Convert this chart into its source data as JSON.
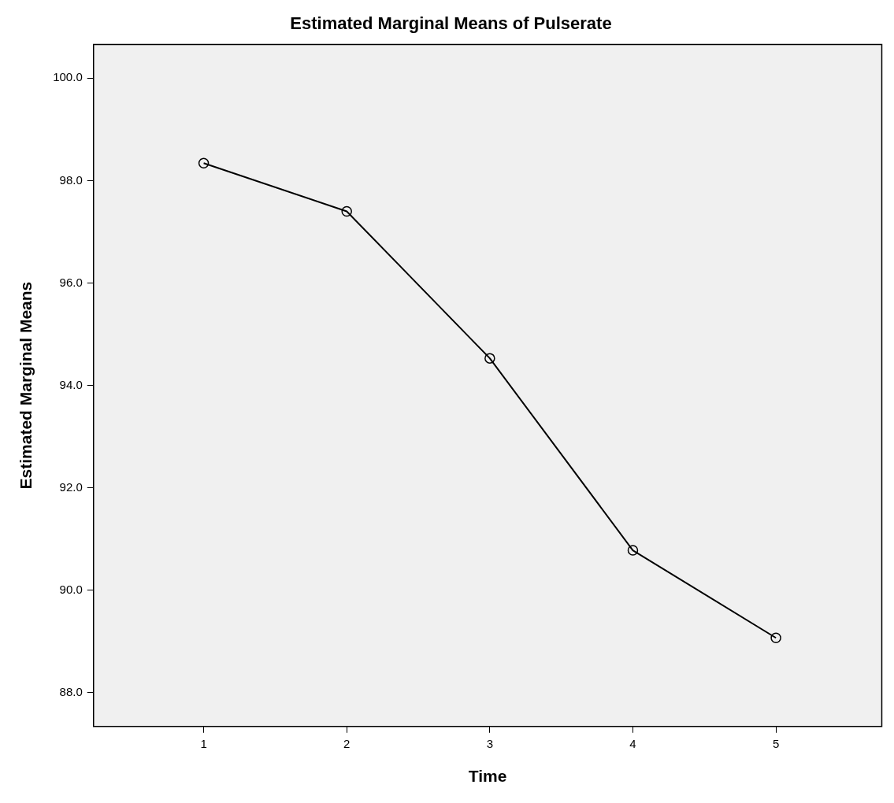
{
  "chart_data": {
    "type": "line",
    "title": "Estimated Marginal Means of Pulserate",
    "xlabel": "Time",
    "ylabel": "Estimated Marginal Means",
    "x": [
      1,
      2,
      3,
      4,
      5
    ],
    "series": [
      {
        "color": "#000000",
        "values": [
          98.34,
          97.4,
          94.53,
          90.78,
          89.07
        ]
      }
    ],
    "xlim": [
      0.23,
      5.74
    ],
    "xticks": [
      1,
      2,
      3,
      4,
      5
    ],
    "ylim": [
      87.34,
      100.66
    ],
    "yticks": [
      {
        "value": 88,
        "label": "88.0"
      },
      {
        "value": 90,
        "label": "90.0"
      },
      {
        "value": 92,
        "label": "92.0"
      },
      {
        "value": 94,
        "label": "94.0"
      },
      {
        "value": 96,
        "label": "96.0"
      },
      {
        "value": 98,
        "label": "98.0"
      },
      {
        "value": 100,
        "label": "100.0"
      }
    ],
    "grid": false,
    "legend": false,
    "marker": "circle",
    "line_style": "solid"
  }
}
